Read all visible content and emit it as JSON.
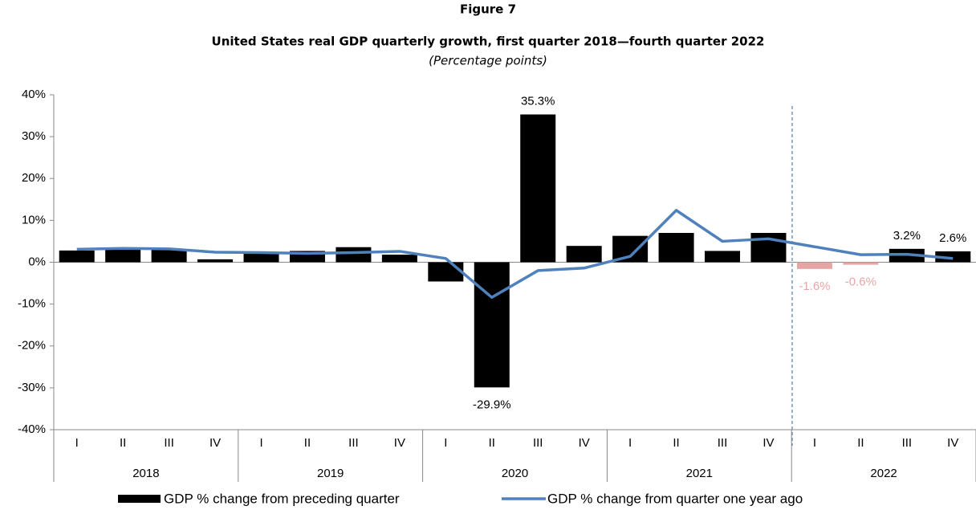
{
  "chart_data": {
    "type": "bar",
    "title": "Figure 7",
    "subtitle": "United States real GDP quarterly growth, first quarter 2018—fourth quarter 2022",
    "unit_note": "(Percentage points)",
    "categories": [
      "I",
      "II",
      "III",
      "IV",
      "I",
      "II",
      "III",
      "IV",
      "I",
      "II",
      "III",
      "IV",
      "I",
      "II",
      "III",
      "IV",
      "I",
      "II",
      "III",
      "IV"
    ],
    "category_groups": [
      "2018",
      "2019",
      "2020",
      "2021",
      "2022"
    ],
    "ylim": [
      -40,
      40
    ],
    "yticks": [
      {
        "value": -40,
        "label": "-40%"
      },
      {
        "value": -30,
        "label": "-30%"
      },
      {
        "value": -20,
        "label": "-20%"
      },
      {
        "value": -10,
        "label": "-10%"
      },
      {
        "value": 0,
        "label": "0%"
      },
      {
        "value": 10,
        "label": "10%"
      },
      {
        "value": 20,
        "label": "20%"
      },
      {
        "value": 30,
        "label": "30%"
      },
      {
        "value": 40,
        "label": "40%"
      }
    ],
    "series": [
      {
        "name": "GDP % change from preceding quarter",
        "type": "bar",
        "color": "#000000",
        "values": [
          2.8,
          3.0,
          3.0,
          0.7,
          2.2,
          2.7,
          3.6,
          1.8,
          -4.6,
          -29.9,
          35.3,
          3.9,
          6.3,
          7.0,
          2.7,
          7.0,
          -1.6,
          -0.6,
          3.2,
          2.6
        ],
        "point_colors": [
          "#000000",
          "#000000",
          "#000000",
          "#000000",
          "#000000",
          "#000000",
          "#000000",
          "#000000",
          "#000000",
          "#000000",
          "#000000",
          "#000000",
          "#000000",
          "#000000",
          "#000000",
          "#000000",
          "#e6a5a5",
          "#e6a5a5",
          "#000000",
          "#000000"
        ],
        "value_labels": [
          null,
          null,
          null,
          null,
          null,
          null,
          null,
          null,
          null,
          "-29.9%",
          "35.3%",
          null,
          null,
          null,
          null,
          null,
          "-1.6%",
          "-0.6%",
          "3.2%",
          "2.6%"
        ]
      },
      {
        "name": "GDP % change from quarter one year ago",
        "type": "line",
        "color": "#4f81bd",
        "values": [
          3.1,
          3.3,
          3.2,
          2.4,
          2.3,
          2.1,
          2.3,
          2.6,
          0.9,
          -8.4,
          -2.0,
          -1.4,
          1.4,
          12.4,
          5.0,
          5.6,
          3.7,
          1.8,
          1.9,
          0.9
        ]
      }
    ]
  }
}
